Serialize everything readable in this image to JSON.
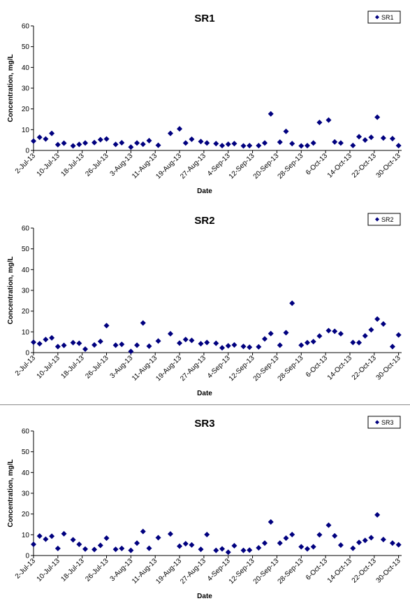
{
  "chart_data": [
    {
      "type": "scatter",
      "title": "SR1",
      "xlabel": "Date",
      "ylabel": "Concentration, mg/L",
      "ylim": [
        0,
        60
      ],
      "yticks": [
        "0",
        "10",
        "20",
        "30",
        "40",
        "50",
        "60"
      ],
      "xlim": [
        "2013-07-02",
        "2013-10-31"
      ],
      "xticks": [
        "2-Jul-13",
        "10-Jul-13",
        "18-Jul-13",
        "26-Jul-13",
        "3-Aug-13",
        "11-Aug-13",
        "19-Aug-13",
        "27-Aug-13",
        "4-Sep-13",
        "12-Sep-13",
        "20-Sep-13",
        "28-Sep-13",
        "6-Oct-13",
        "14-Oct-13",
        "22-Oct-13",
        "30-Oct-13"
      ],
      "grid": false,
      "legend": "top-right",
      "marker_color": "#00007f",
      "series": [
        {
          "name": "SR1",
          "points": [
            [
              "2013-07-02",
              4.5
            ],
            [
              "2013-07-04",
              6.3
            ],
            [
              "2013-07-06",
              5.5
            ],
            [
              "2013-07-08",
              8.2
            ],
            [
              "2013-07-10",
              2.8
            ],
            [
              "2013-07-12",
              3.5
            ],
            [
              "2013-07-15",
              2.2
            ],
            [
              "2013-07-17",
              2.9
            ],
            [
              "2013-07-19",
              3.6
            ],
            [
              "2013-07-22",
              3.8
            ],
            [
              "2013-07-24",
              5.2
            ],
            [
              "2013-07-26",
              5.5
            ],
            [
              "2013-07-29",
              2.9
            ],
            [
              "2013-07-31",
              3.7
            ],
            [
              "2013-08-03",
              1.6
            ],
            [
              "2013-08-05",
              3.6
            ],
            [
              "2013-08-07",
              3.0
            ],
            [
              "2013-08-09",
              4.7
            ],
            [
              "2013-08-12",
              2.5
            ],
            [
              "2013-08-16",
              8.2
            ],
            [
              "2013-08-19",
              10.4
            ],
            [
              "2013-08-21",
              3.6
            ],
            [
              "2013-08-23",
              5.4
            ],
            [
              "2013-08-26",
              4.3
            ],
            [
              "2013-08-28",
              3.6
            ],
            [
              "2013-08-31",
              3.3
            ],
            [
              "2013-09-02",
              2.3
            ],
            [
              "2013-09-04",
              3.0
            ],
            [
              "2013-09-06",
              3.3
            ],
            [
              "2013-09-09",
              2.2
            ],
            [
              "2013-09-11",
              2.3
            ],
            [
              "2013-09-14",
              2.3
            ],
            [
              "2013-09-16",
              3.6
            ],
            [
              "2013-09-18",
              17.6
            ],
            [
              "2013-09-21",
              4.0
            ],
            [
              "2013-09-23",
              9.2
            ],
            [
              "2013-09-25",
              3.3
            ],
            [
              "2013-09-28",
              2.2
            ],
            [
              "2013-09-30",
              2.3
            ],
            [
              "2013-10-02",
              3.6
            ],
            [
              "2013-10-04",
              13.5
            ],
            [
              "2013-10-07",
              14.6
            ],
            [
              "2013-10-09",
              4.1
            ],
            [
              "2013-10-11",
              3.6
            ],
            [
              "2013-10-15",
              2.4
            ],
            [
              "2013-10-17",
              6.6
            ],
            [
              "2013-10-19",
              5.0
            ],
            [
              "2013-10-21",
              6.3
            ],
            [
              "2013-10-23",
              16.0
            ],
            [
              "2013-10-25",
              6.0
            ],
            [
              "2013-10-28",
              5.7
            ],
            [
              "2013-10-30",
              2.3
            ]
          ]
        }
      ]
    },
    {
      "type": "scatter",
      "title": "SR2",
      "xlabel": "Date",
      "ylabel": "Concentration, mg/L",
      "ylim": [
        0,
        60
      ],
      "yticks": [
        "0",
        "10",
        "20",
        "30",
        "40",
        "50",
        "60"
      ],
      "xlim": [
        "2013-07-02",
        "2013-10-31"
      ],
      "xticks": [
        "2-Jul-13",
        "10-Jul-13",
        "18-Jul-13",
        "26-Jul-13",
        "3-Aug-13",
        "11-Aug-13",
        "19-Aug-13",
        "27-Aug-13",
        "4-Sep-13",
        "12-Sep-13",
        "20-Sep-13",
        "28-Sep-13",
        "6-Oct-13",
        "14-Oct-13",
        "22-Oct-13",
        "30-Oct-13"
      ],
      "grid": false,
      "legend": "top-right",
      "marker_color": "#00007f",
      "series": [
        {
          "name": "SR2",
          "points": [
            [
              "2013-07-02",
              5.0
            ],
            [
              "2013-07-04",
              4.3
            ],
            [
              "2013-07-06",
              6.3
            ],
            [
              "2013-07-08",
              7.1
            ],
            [
              "2013-07-10",
              2.9
            ],
            [
              "2013-07-12",
              3.5
            ],
            [
              "2013-07-15",
              4.8
            ],
            [
              "2013-07-17",
              4.5
            ],
            [
              "2013-07-19",
              1.7
            ],
            [
              "2013-07-22",
              3.7
            ],
            [
              "2013-07-24",
              5.4
            ],
            [
              "2013-07-26",
              13.0
            ],
            [
              "2013-07-29",
              3.6
            ],
            [
              "2013-07-31",
              4.0
            ],
            [
              "2013-08-03",
              0.6
            ],
            [
              "2013-08-05",
              3.6
            ],
            [
              "2013-08-07",
              14.3
            ],
            [
              "2013-08-09",
              3.1
            ],
            [
              "2013-08-12",
              5.6
            ],
            [
              "2013-08-16",
              9.1
            ],
            [
              "2013-08-19",
              4.6
            ],
            [
              "2013-08-21",
              6.3
            ],
            [
              "2013-08-23",
              5.9
            ],
            [
              "2013-08-26",
              4.3
            ],
            [
              "2013-08-28",
              4.9
            ],
            [
              "2013-08-31",
              4.5
            ],
            [
              "2013-09-02",
              2.3
            ],
            [
              "2013-09-04",
              3.3
            ],
            [
              "2013-09-06",
              3.7
            ],
            [
              "2013-09-09",
              3.0
            ],
            [
              "2013-09-11",
              2.6
            ],
            [
              "2013-09-14",
              2.8
            ],
            [
              "2013-09-16",
              6.6
            ],
            [
              "2013-09-18",
              9.2
            ],
            [
              "2013-09-21",
              3.6
            ],
            [
              "2013-09-23",
              9.6
            ],
            [
              "2013-09-25",
              23.8
            ],
            [
              "2013-09-28",
              3.6
            ],
            [
              "2013-09-30",
              4.8
            ],
            [
              "2013-10-02",
              5.3
            ],
            [
              "2013-10-04",
              8.0
            ],
            [
              "2013-10-07",
              10.6
            ],
            [
              "2013-10-09",
              10.3
            ],
            [
              "2013-10-11",
              9.1
            ],
            [
              "2013-10-15",
              4.9
            ],
            [
              "2013-10-17",
              4.8
            ],
            [
              "2013-10-19",
              8.1
            ],
            [
              "2013-10-21",
              11.0
            ],
            [
              "2013-10-23",
              16.2
            ],
            [
              "2013-10-25",
              13.8
            ],
            [
              "2013-10-28",
              2.9
            ],
            [
              "2013-10-30",
              8.5
            ]
          ]
        }
      ]
    },
    {
      "type": "scatter",
      "title": "SR3",
      "xlabel": "Date",
      "ylabel": "Concentration, mg/L",
      "ylim": [
        0,
        60
      ],
      "yticks": [
        "0",
        "10",
        "20",
        "30",
        "40",
        "50",
        "60"
      ],
      "xlim": [
        "2013-07-02",
        "2013-10-31"
      ],
      "xticks": [
        "2-Jul-13",
        "10-Jul-13",
        "18-Jul-13",
        "26-Jul-13",
        "3-Aug-13",
        "11-Aug-13",
        "19-Aug-13",
        "27-Aug-13",
        "4-Sep-13",
        "12-Sep-13",
        "20-Sep-13",
        "28-Sep-13",
        "6-Oct-13",
        "14-Oct-13",
        "22-Oct-13",
        "30-Oct-13"
      ],
      "grid": false,
      "legend": "top-right",
      "marker_color": "#00007f",
      "series": [
        {
          "name": "SR3",
          "points": [
            [
              "2013-07-02",
              5.4
            ],
            [
              "2013-07-04",
              9.4
            ],
            [
              "2013-07-06",
              7.9
            ],
            [
              "2013-07-08",
              9.3
            ],
            [
              "2013-07-10",
              3.4
            ],
            [
              "2013-07-12",
              10.5
            ],
            [
              "2013-07-15",
              7.6
            ],
            [
              "2013-07-17",
              5.4
            ],
            [
              "2013-07-19",
              3.1
            ],
            [
              "2013-07-22",
              2.9
            ],
            [
              "2013-07-24",
              4.9
            ],
            [
              "2013-07-26",
              8.4
            ],
            [
              "2013-07-29",
              3.0
            ],
            [
              "2013-07-31",
              3.4
            ],
            [
              "2013-08-03",
              2.5
            ],
            [
              "2013-08-05",
              6.0
            ],
            [
              "2013-08-07",
              11.6
            ],
            [
              "2013-08-09",
              3.5
            ],
            [
              "2013-08-12",
              8.6
            ],
            [
              "2013-08-16",
              10.4
            ],
            [
              "2013-08-19",
              4.5
            ],
            [
              "2013-08-21",
              5.7
            ],
            [
              "2013-08-23",
              5.1
            ],
            [
              "2013-08-26",
              3.0
            ],
            [
              "2013-08-28",
              10.1
            ],
            [
              "2013-08-31",
              2.5
            ],
            [
              "2013-09-02",
              3.2
            ],
            [
              "2013-09-04",
              1.6
            ],
            [
              "2013-09-06",
              4.7
            ],
            [
              "2013-09-09",
              2.5
            ],
            [
              "2013-09-11",
              2.6
            ],
            [
              "2013-09-14",
              3.7
            ],
            [
              "2013-09-16",
              6.0
            ],
            [
              "2013-09-18",
              16.2
            ],
            [
              "2013-09-21",
              6.0
            ],
            [
              "2013-09-23",
              8.4
            ],
            [
              "2013-09-25",
              10.1
            ],
            [
              "2013-09-28",
              4.2
            ],
            [
              "2013-09-30",
              3.2
            ],
            [
              "2013-10-02",
              4.2
            ],
            [
              "2013-10-04",
              10.0
            ],
            [
              "2013-10-07",
              14.6
            ],
            [
              "2013-10-09",
              9.5
            ],
            [
              "2013-10-11",
              5.0
            ],
            [
              "2013-10-15",
              3.5
            ],
            [
              "2013-10-17",
              6.3
            ],
            [
              "2013-10-19",
              7.3
            ],
            [
              "2013-10-21",
              8.6
            ],
            [
              "2013-10-23",
              19.6
            ],
            [
              "2013-10-25",
              7.7
            ],
            [
              "2013-10-28",
              6.0
            ],
            [
              "2013-10-30",
              5.2
            ]
          ]
        }
      ]
    }
  ]
}
